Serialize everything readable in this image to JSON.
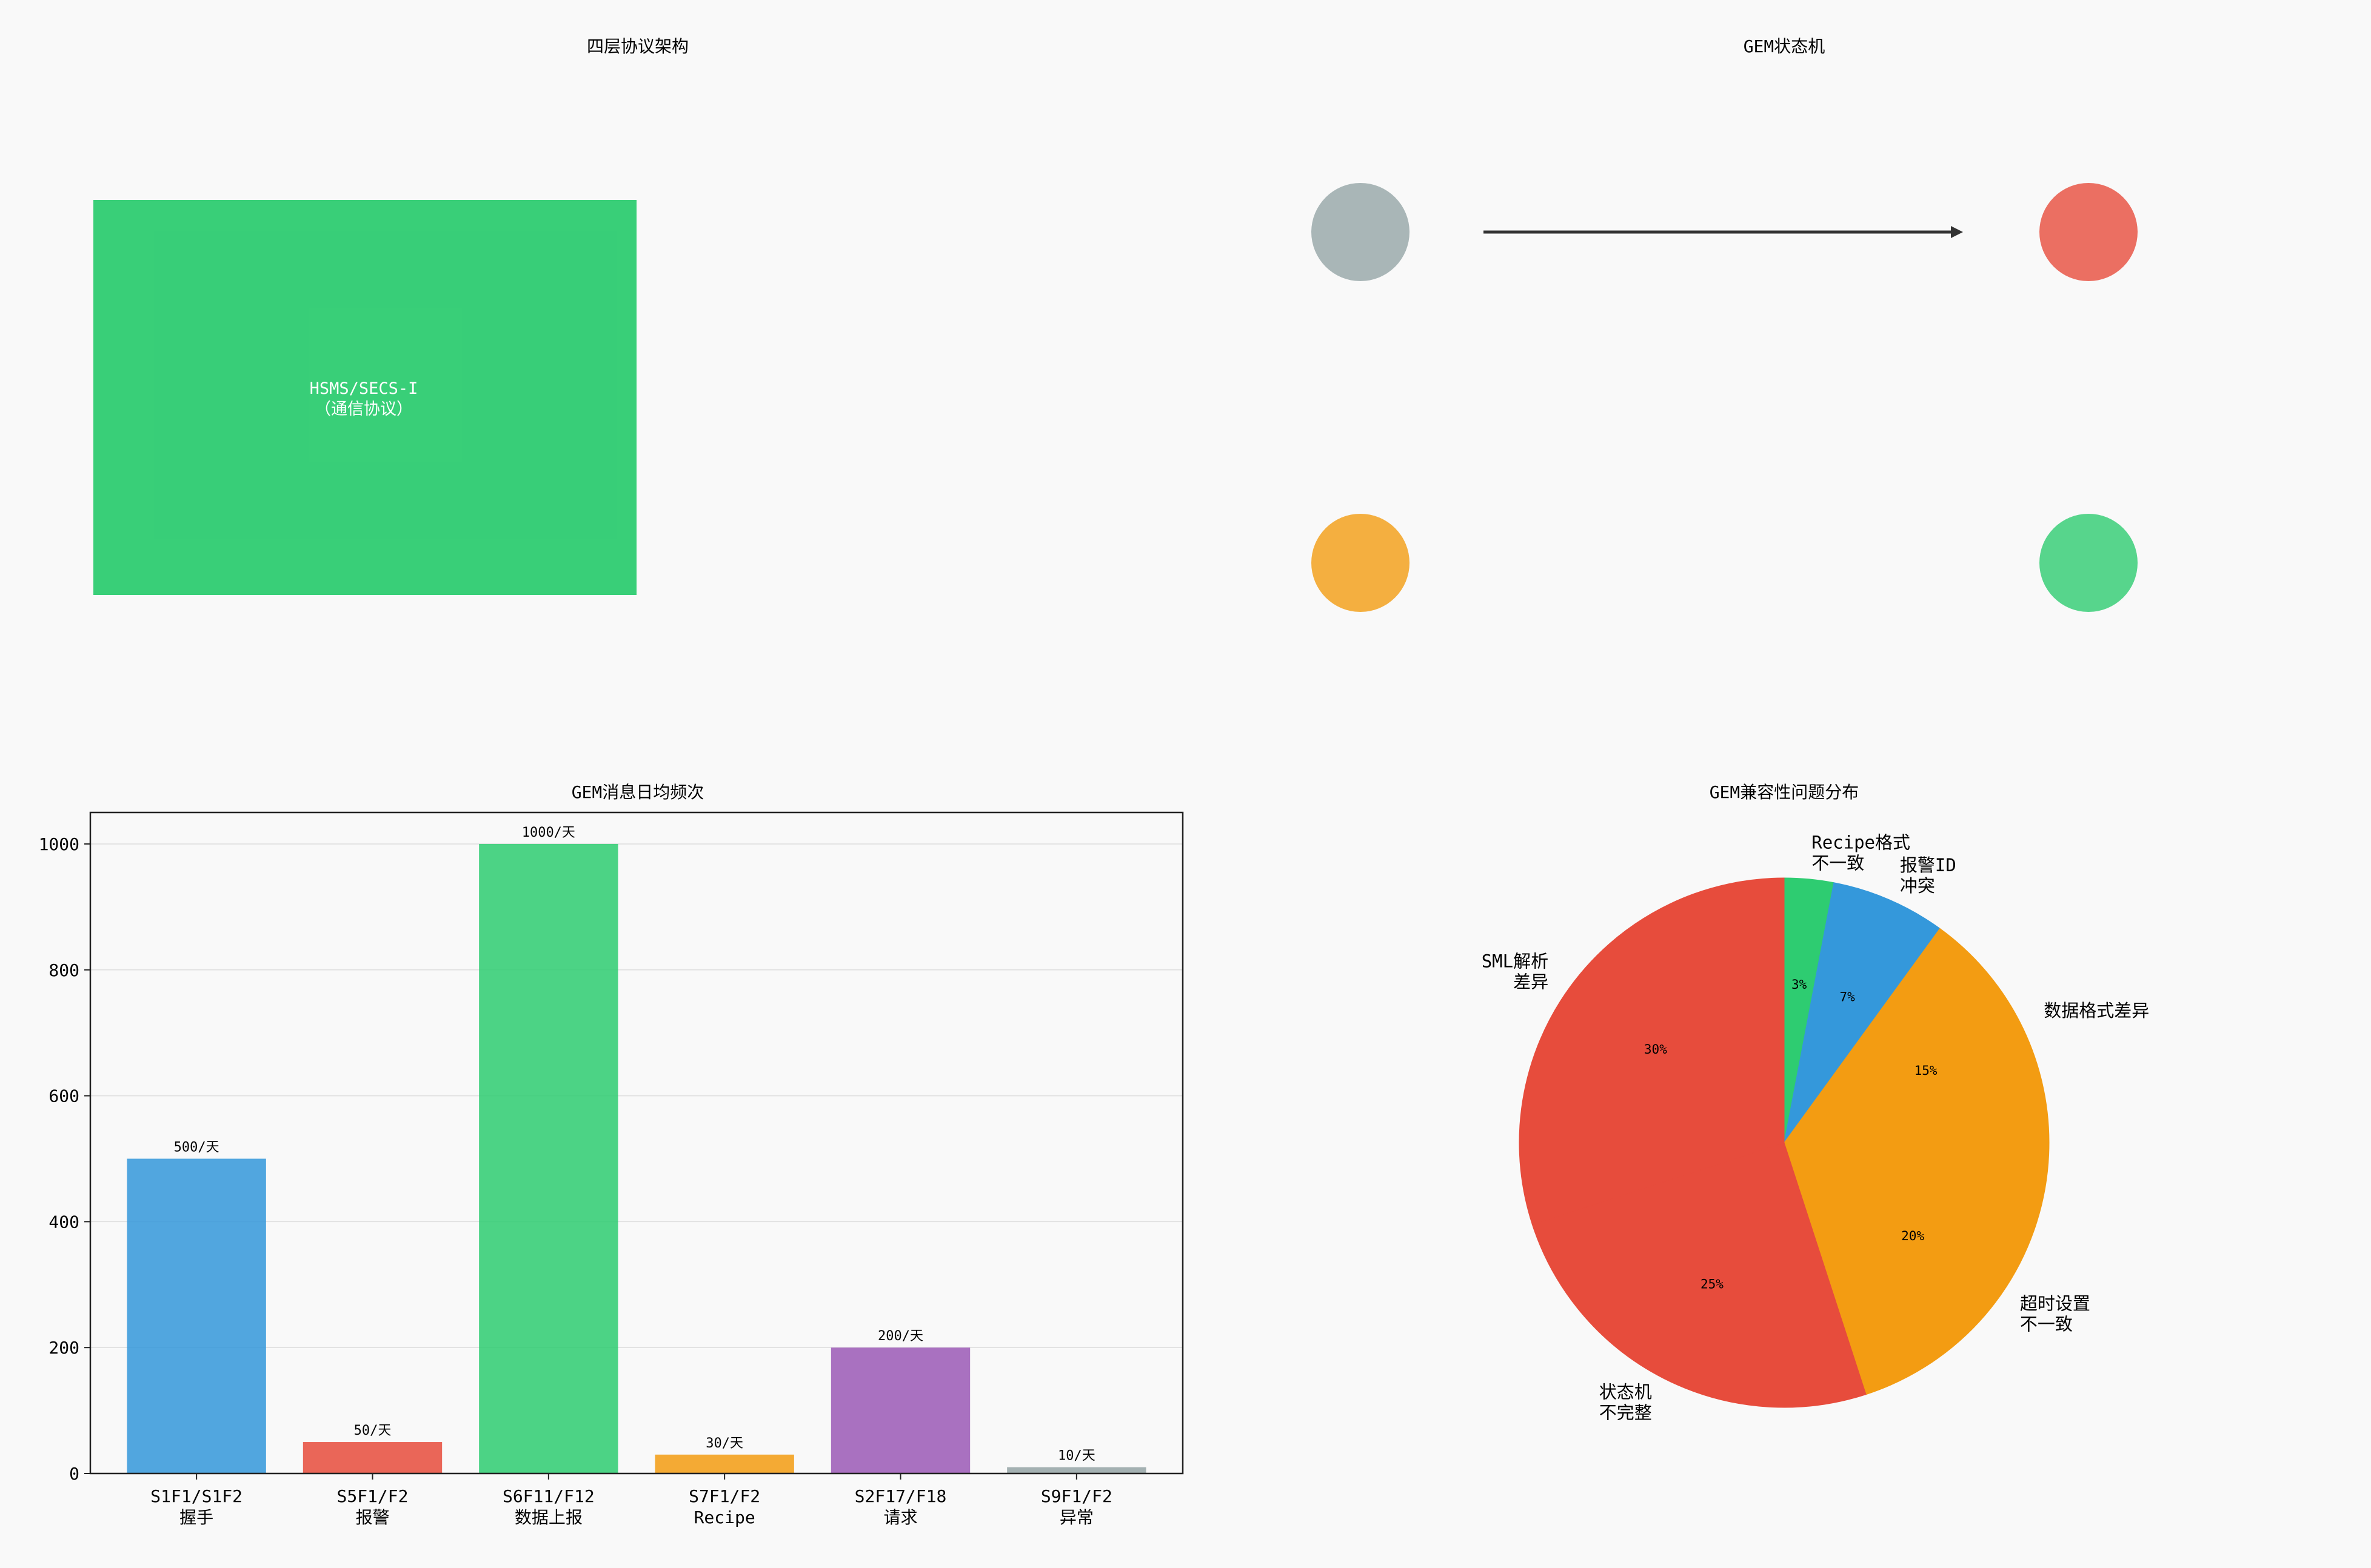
{
  "chart_data": [
    {
      "type": "diagram",
      "title": "四层协议架构",
      "layer_block": {
        "color": "#2ecc71",
        "overlapping_label_lines": [
          "HSMS/SECS-I",
          "（通信协议）"
        ]
      }
    },
    {
      "type": "diagram",
      "title": "GEM状态机",
      "states": [
        {
          "color": "#95a5a6"
        },
        {
          "color": "#e74c3c"
        },
        {
          "color": "#f39c12"
        },
        {
          "color": "#2ecc71"
        }
      ],
      "arrow_color": "#333333"
    },
    {
      "type": "bar",
      "title": "GEM消息日均频次",
      "categories": [
        "S1F1/S1F2\n握手",
        "S5F1/F2\n报警",
        "S6F11/F12\n数据上报",
        "S7F1/F2\nRecipe",
        "S2F17/F18\n请求",
        "S9F1/F2\n异常"
      ],
      "values": [
        500,
        50,
        1000,
        30,
        200,
        10
      ],
      "data_labels": [
        "500/天",
        "50/天",
        "1000/天",
        "30/天",
        "200/天",
        "10/天"
      ],
      "colors": [
        "#3498db",
        "#e74c3c",
        "#2ecc71",
        "#f39c12",
        "#9b59b6",
        "#95a5a6"
      ],
      "ylim": [
        0,
        1050
      ],
      "yticks": [
        0,
        200,
        400,
        600,
        800,
        1000
      ],
      "grid": true
    },
    {
      "type": "pie",
      "title": "GEM兼容性问题分布",
      "labels": [
        "Recipe格式\n不一致",
        "报警ID\n冲突",
        "数据格式差异",
        "超时设置\n不一致",
        "状态机\n不完整",
        "SML解析\n差异"
      ],
      "values": [
        3,
        7,
        15,
        20,
        25,
        30
      ],
      "pct_labels": [
        "3%",
        "7%",
        "15%",
        "20%",
        "25%",
        "30%"
      ],
      "colors": [
        "#2ecc71",
        "#3498db",
        "#f39c12",
        "#f39c12",
        "#e74c3c",
        "#e74c3c"
      ]
    }
  ]
}
